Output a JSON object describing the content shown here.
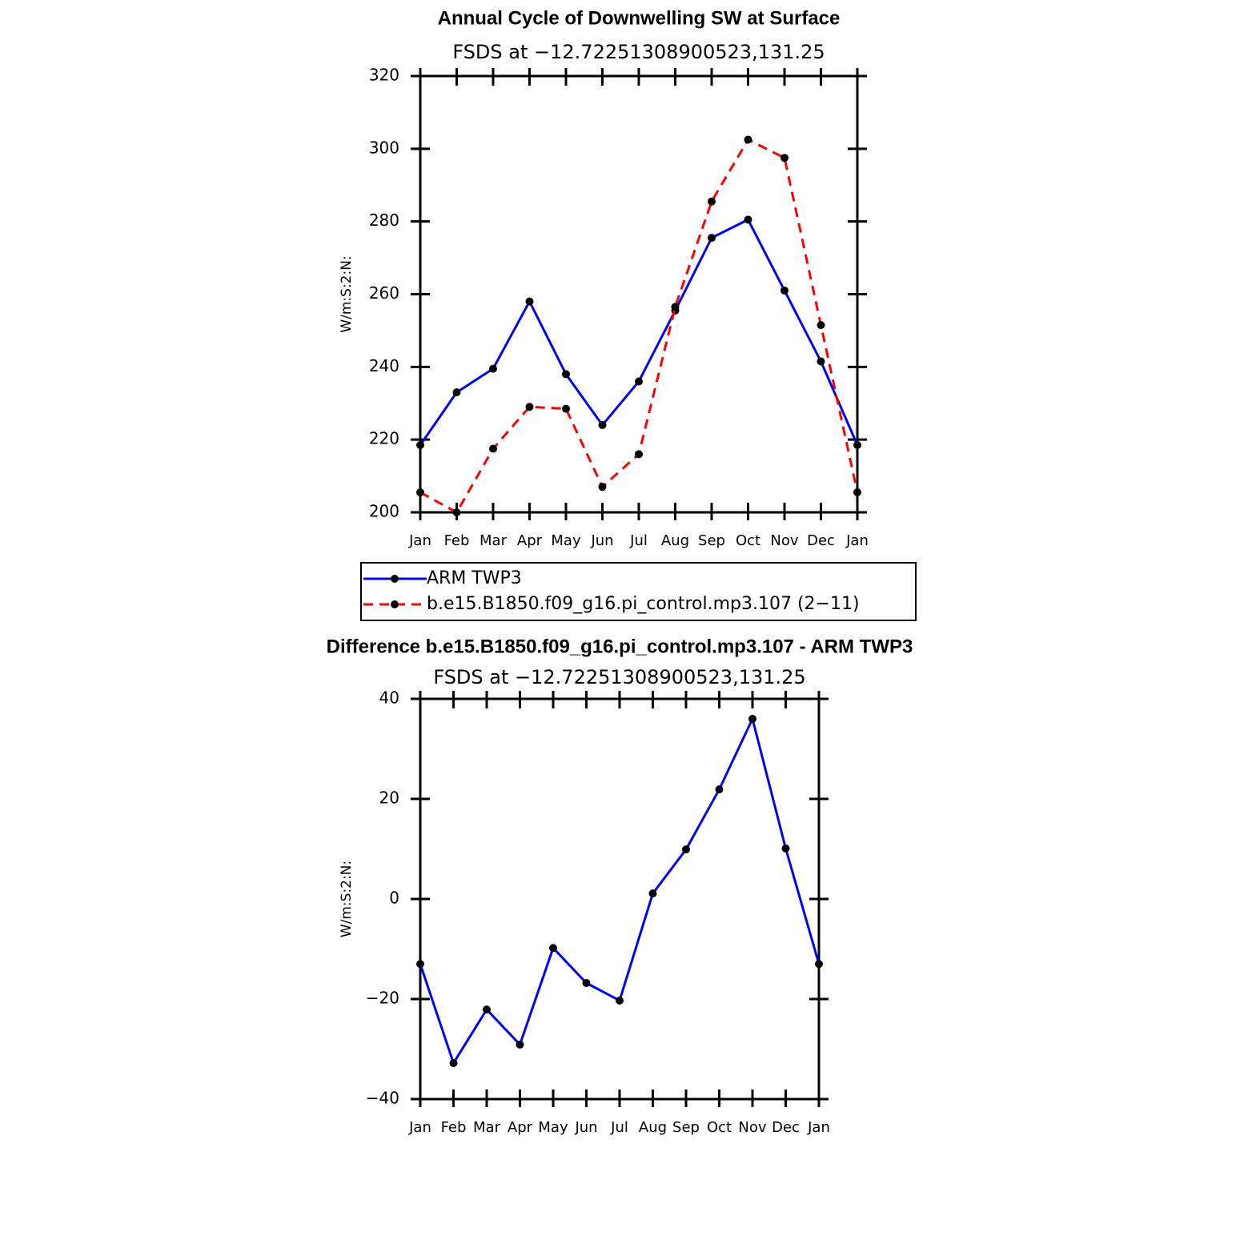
{
  "chart_data": [
    {
      "type": "line",
      "title": "Annual Cycle of Downwelling SW at Surface",
      "subtitle": "FSDS at −12.72251308900523,131.25",
      "y_label": "W/m:S:2:N:",
      "categories": [
        "Jan",
        "Feb",
        "Mar",
        "Apr",
        "May",
        "Jun",
        "Jul",
        "Aug",
        "Sep",
        "Oct",
        "Nov",
        "Dec",
        "Jan"
      ],
      "series": [
        {
          "name": "ARM TWP3",
          "color": "#0000ff",
          "line_style": "solid",
          "values": [
            218.5,
            233,
            239.5,
            258,
            238,
            224,
            236,
            255.5,
            275.5,
            280.5,
            261,
            241.5,
            218.5
          ]
        },
        {
          "name": "b.e15.B1850.f09_g16.pi_control.mp3.107 (2−11)",
          "color": "#ff0000",
          "line_style": "dashed",
          "values": [
            205.5,
            200,
            217.5,
            229,
            228.5,
            207,
            216,
            256.5,
            285.5,
            302.5,
            297.5,
            251.5,
            205.5
          ]
        }
      ],
      "marker_color": "#000000",
      "ylim": [
        200,
        320
      ],
      "yticks": [
        200,
        220,
        240,
        260,
        280,
        300,
        320
      ],
      "legend": "bottom"
    },
    {
      "type": "line",
      "title": "Difference b.e15.B1850.f09_g16.pi_control.mp3.107 - ARM TWP3",
      "subtitle": "FSDS at −12.72251308900523,131.25",
      "y_label": "W/m:S:2:N:",
      "categories": [
        "Jan",
        "Feb",
        "Mar",
        "Apr",
        "May",
        "Jun",
        "Jul",
        "Aug",
        "Sep",
        "Oct",
        "Nov",
        "Dec",
        "Jan"
      ],
      "values": [
        -13,
        -32.8,
        -22.1,
        -29.1,
        -9.8,
        -16.8,
        -20.3,
        1.1,
        9.9,
        21.9,
        36,
        10.1,
        -13
      ],
      "color": "#0000ff",
      "marker_color": "#000000",
      "ylim": [
        -40,
        40
      ],
      "yticks": [
        {
          "value": -40,
          "label": "−40"
        },
        {
          "value": -20,
          "label": "−20"
        },
        0,
        20,
        {
          "value": 40,
          "label": "40"
        }
      ]
    }
  ]
}
